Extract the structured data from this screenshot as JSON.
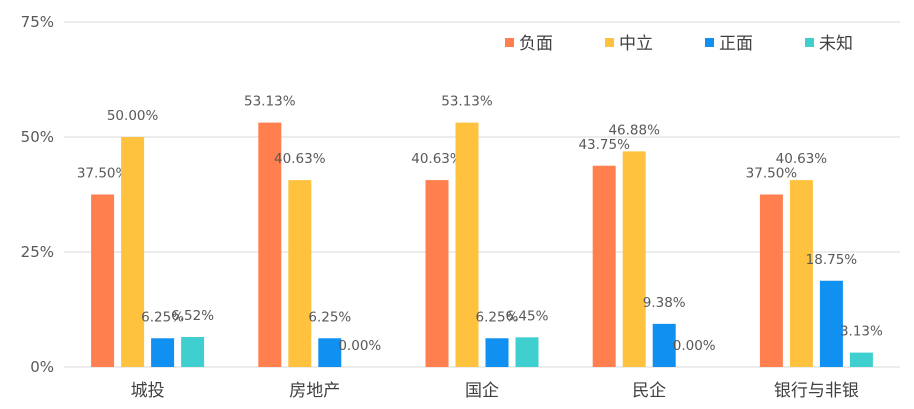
{
  "chart_data": {
    "type": "bar",
    "categories": [
      "城投",
      "房地产",
      "国企",
      "民企",
      "银行与非银"
    ],
    "series": [
      {
        "name": "负面",
        "color": "#FF7F4F",
        "values": [
          37.5,
          53.13,
          40.63,
          43.75,
          37.5
        ],
        "labels": [
          "37.50%",
          "53.13%",
          "40.63%",
          "43.75%",
          "37.50%"
        ]
      },
      {
        "name": "中立",
        "color": "#FFC23F",
        "values": [
          50.0,
          40.63,
          53.13,
          46.88,
          40.63
        ],
        "labels": [
          "50.00%",
          "40.63%",
          "53.13%",
          "46.88%",
          "40.63%"
        ]
      },
      {
        "name": "正面",
        "color": "#1090F0",
        "values": [
          6.25,
          6.25,
          6.25,
          9.38,
          18.75
        ],
        "labels": [
          "6.25%",
          "6.25%",
          "6.25%",
          "9.38%",
          "18.75%"
        ]
      },
      {
        "name": "未知",
        "color": "#40CFCF",
        "values": [
          6.52,
          0.0,
          6.45,
          0.0,
          3.13
        ],
        "labels": [
          "6.52%",
          "0.00%",
          "6.45%",
          "0.00%",
          "3.13%"
        ]
      }
    ],
    "y_ticks": [
      "0%",
      "25%",
      "50%",
      "75%"
    ],
    "ylim": [
      0,
      75
    ],
    "grid": true,
    "legend_position": "top-right",
    "title": "",
    "xlabel": "",
    "ylabel": ""
  }
}
